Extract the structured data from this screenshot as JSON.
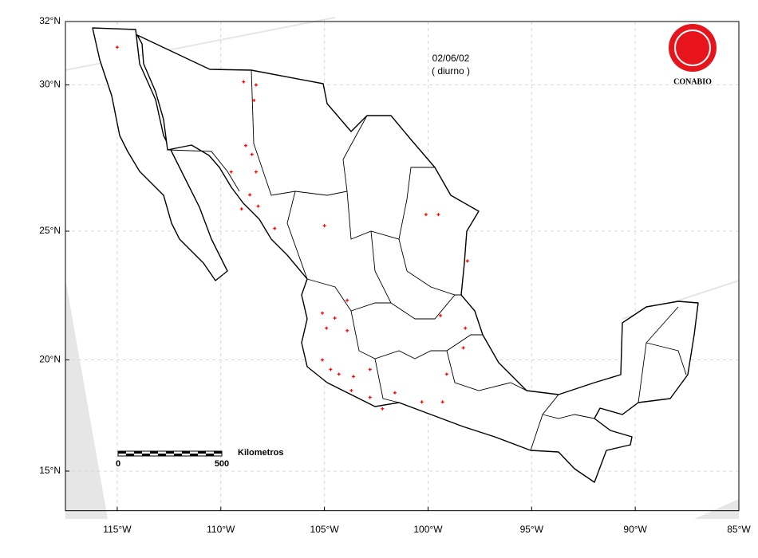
{
  "chart_data": {
    "type": "map",
    "title": "02/06/02",
    "subtitle": "( diurno )",
    "logo": "CONABIO",
    "scale_bar": {
      "label": "Kilometros",
      "start": 0,
      "end": 500
    },
    "xlim": [
      -117.5,
      -85
    ],
    "ylim": [
      13,
      32
    ],
    "xticks": [
      {
        "value": -115,
        "label": "115°W"
      },
      {
        "value": -110,
        "label": "110°W"
      },
      {
        "value": -105,
        "label": "105°W"
      },
      {
        "value": -100,
        "label": "100°W"
      },
      {
        "value": -95,
        "label": "95°W"
      },
      {
        "value": -90,
        "label": "90°W"
      },
      {
        "value": -85,
        "label": "85°W"
      }
    ],
    "yticks": [
      {
        "value": 32,
        "label": "32°N"
      },
      {
        "value": 30,
        "label": "30°N"
      },
      {
        "value": 25,
        "label": "25°N"
      },
      {
        "value": 20,
        "label": "20°N"
      },
      {
        "value": 15,
        "label": "15°N"
      }
    ],
    "grid": true,
    "points": {
      "color": "#ff0000",
      "lon": [
        -115.0,
        -108.9,
        -108.3,
        -108.4,
        -108.8,
        -108.5,
        -109.5,
        -108.3,
        -108.6,
        -108.2,
        -109.0,
        -107.4,
        -105.0,
        -100.1,
        -99.5,
        -98.1,
        -105.1,
        -104.5,
        -103.9,
        -104.9,
        -103.9,
        -99.4,
        -98.2,
        -105.1,
        -104.7,
        -104.3,
        -103.6,
        -102.8,
        -103.7,
        -102.8,
        -101.6,
        -100.3,
        -99.3,
        -98.3,
        -99.1,
        -102.2
      ],
      "lat": [
        31.2,
        30.1,
        30.0,
        29.5,
        28.0,
        27.7,
        27.1,
        27.1,
        26.3,
        25.9,
        25.8,
        25.1,
        25.2,
        25.6,
        25.6,
        23.9,
        21.9,
        21.7,
        22.4,
        21.3,
        21.2,
        21.8,
        21.3,
        20.0,
        19.6,
        19.4,
        19.3,
        19.6,
        18.7,
        18.4,
        18.6,
        18.2,
        18.2,
        20.5,
        19.4,
        17.9
      ]
    }
  }
}
